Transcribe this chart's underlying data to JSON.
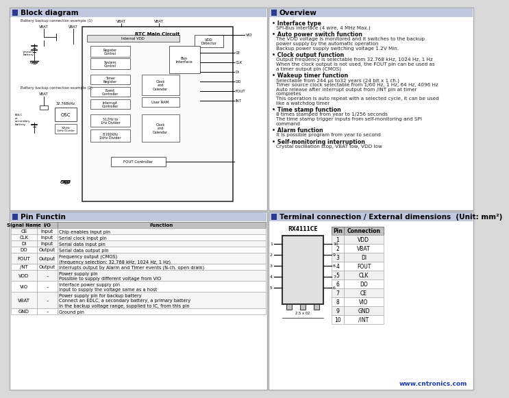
{
  "title_block": "Block diagram",
  "title_overview": "Overview",
  "title_pin": "Pin Functin",
  "title_terminal": "Terminal connection / External dimensions  (Unit: mm²)",
  "overview_bullets": [
    [
      "Interface type",
      "SPI-Bus interface (4 wire, 4 MHz Max.)"
    ],
    [
      "Auto power switch function",
      "The VDD voltage is monitored and it switches to the backup\npower supply by the automatic operation\nBackup power supply switching voltage 1.2V Min."
    ],
    [
      "Clock output function",
      "Output frequency is selectable from 32.768 kHz, 1024 Hz, 1 Hz\nWhen the clock output is not used, the FOUT pin can be used as\na timer output pin (CMOS)"
    ],
    [
      "Wakeup timer function",
      "Selectable from 244 μs to32 years (24 bit x 1 ch.)\nTimer source clock selectable from 1/60 Hz, 1 Hz, 64 Hz, 4096 Hz\nAuto release after interrupt output from /INT pin at timer\ncompletes\nThis operation is auto repeat with a selected cycle, it can be used\nlike a watchdog timer"
    ],
    [
      "Time stamp function",
      "8 times stamped from year to 1/256 seconds\nThe time stamp trigger inputs from self-monitoring and SPI\ncommand"
    ],
    [
      "Alarm function",
      "It is possible program from year to second"
    ],
    [
      "Self-monitoring interruption",
      "Crystal oscillation stop, VBAT low, VDD low"
    ]
  ],
  "pin_headers": [
    "Signal Name",
    "I/O",
    "Function"
  ],
  "pin_rows": [
    [
      "CE",
      "Input",
      "Chip enables input pin"
    ],
    [
      "CLK",
      "Input",
      "Serial clock input pin"
    ],
    [
      "DI",
      "Input",
      "Serial data input pin"
    ],
    [
      "DO",
      "Output",
      "Serial data output pin"
    ],
    [
      "FOUT",
      "Output",
      "Frequency output (CMOS)\n(frequency selection: 32.768 kHz, 1024 Hz, 1 Hz)"
    ],
    [
      "/NT",
      "Output",
      "Interrupts output by Alarm and Timer events (N-ch. open drain)"
    ],
    [
      "VDD",
      "–",
      "Power supply pin\nPossible to supply different voltage from VIO"
    ],
    [
      "VIO",
      "–",
      "Interface power supply pin\nInput to supply the voltage same as a host"
    ],
    [
      "VBAT",
      "–",
      "Power supply pin for backup battery\nConnect an EDLC, a secondary battery, a primary battery\nIn the backup voltage range, supplied to IC, from this pin"
    ],
    [
      "GND",
      "–",
      "Ground pin"
    ]
  ],
  "terminal_table_headers": [
    "Pin",
    "Connection"
  ],
  "terminal_table_rows": [
    [
      "1",
      "VDD"
    ],
    [
      "2",
      "VBAT"
    ],
    [
      "3",
      "DI"
    ],
    [
      "4",
      "FOUT"
    ],
    [
      "5",
      "CLK"
    ],
    [
      "6",
      "DO"
    ],
    [
      "7",
      "CE"
    ],
    [
      "8",
      "VIO"
    ],
    [
      "9",
      "GND"
    ],
    [
      "10",
      "/INT"
    ]
  ],
  "chip_name": "RX4111CE",
  "website": "www.cntronics.com",
  "bg_outer": "#d8d8d8",
  "bg_panel": "#ffffff",
  "header_bar_color": "#c0c8e0",
  "header_icon_color": "#2a3a8c",
  "table_header_bg": "#c8c8c8",
  "watermark_color": "#c8d4ea"
}
